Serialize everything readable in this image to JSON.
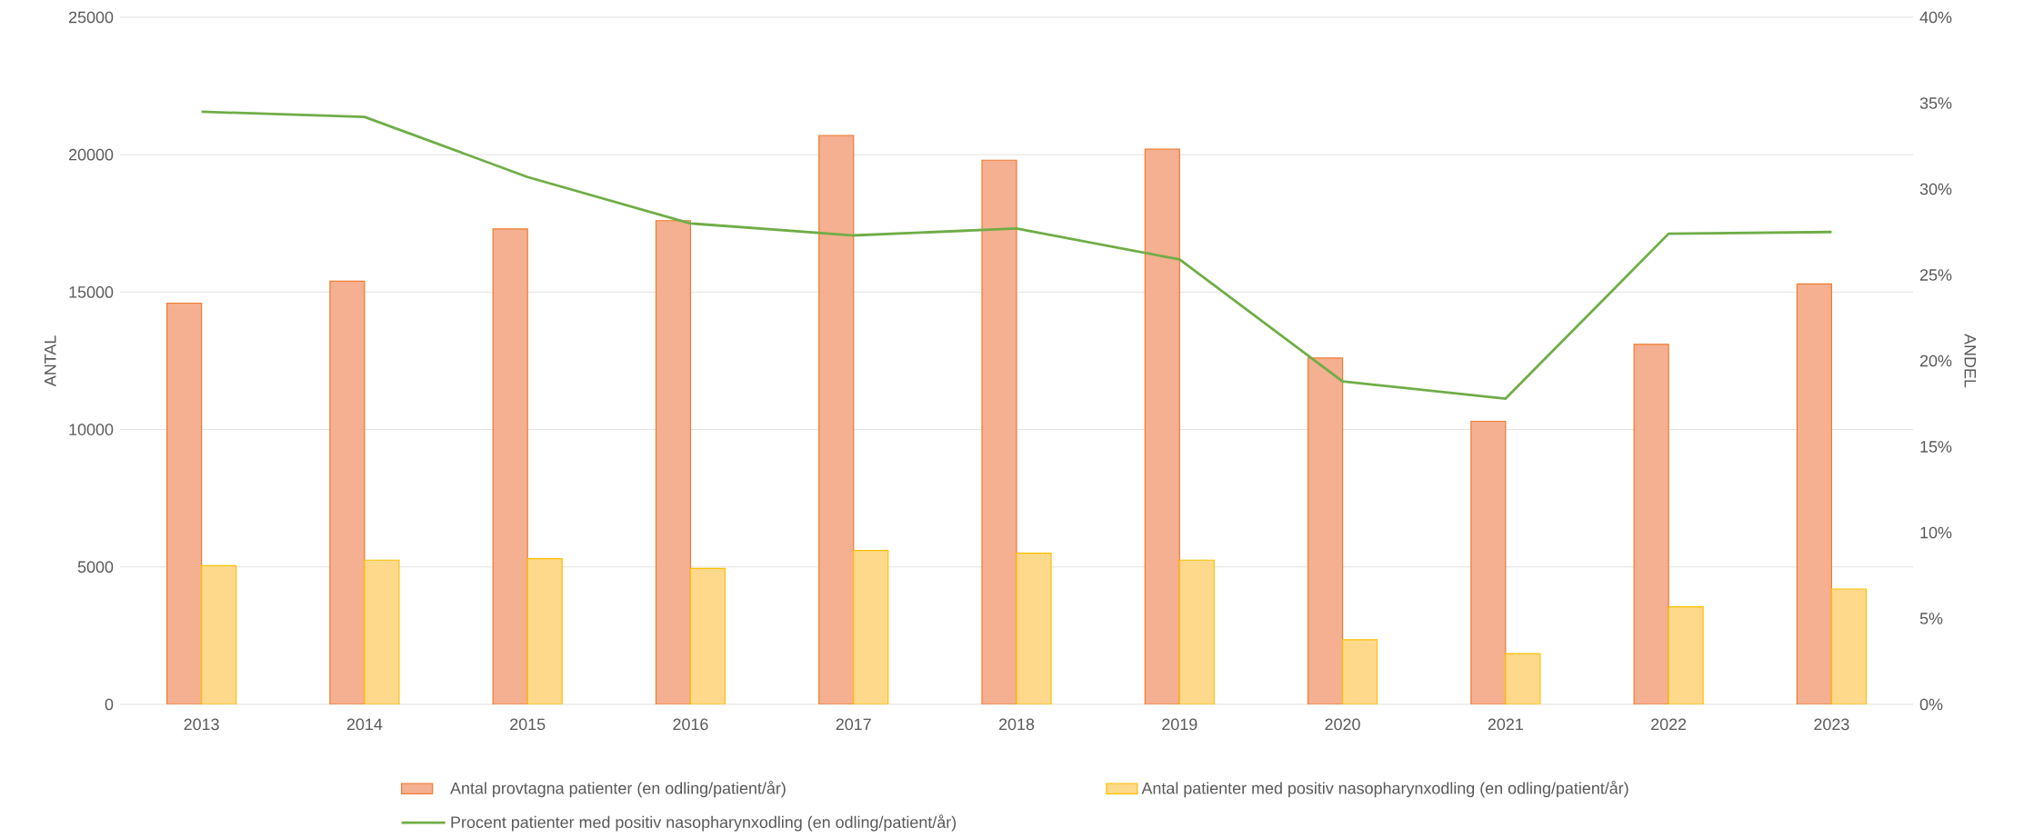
{
  "chart_data": {
    "type": "bar",
    "categories": [
      "2013",
      "2014",
      "2015",
      "2016",
      "2017",
      "2018",
      "2019",
      "2020",
      "2021",
      "2022",
      "2023"
    ],
    "series": [
      {
        "name": "Antal provtagna patienter (en odling/patient/år)",
        "color": "#ed7d31",
        "values": [
          14600,
          15400,
          17300,
          17600,
          20700,
          19800,
          20200,
          12600,
          10300,
          13100,
          15300
        ]
      },
      {
        "name": "Antal patienter med positiv nasopharynxodling (en odling/patient/år)",
        "color": "#ffc000",
        "values": [
          5050,
          5250,
          5300,
          4950,
          5600,
          5500,
          5250,
          2350,
          1850,
          3550,
          4200
        ]
      },
      {
        "name": "Procent patienter med positiv nasopharynxodling (en odling/patient/år)",
        "type": "line",
        "axis": "y2",
        "color": "#70ad47",
        "values": [
          34.5,
          34.2,
          30.7,
          28.0,
          27.3,
          27.7,
          25.9,
          18.8,
          17.8,
          27.4,
          27.5
        ]
      }
    ],
    "ylabel": "ANTAL",
    "y2label": "ANDEL",
    "ylim": [
      0,
      25000
    ],
    "yticks": [
      0,
      5000,
      10000,
      15000,
      20000,
      25000
    ],
    "y2lim": [
      0,
      40
    ],
    "y2ticks": [
      {
        "value": 0,
        "label": "0%"
      },
      {
        "value": 5,
        "label": "5%"
      },
      {
        "value": 10,
        "label": "10%"
      },
      {
        "value": 15,
        "label": "15%"
      },
      {
        "value": 20,
        "label": "20%"
      },
      {
        "value": 25,
        "label": "25%"
      },
      {
        "value": 30,
        "label": "30%"
      },
      {
        "value": 35,
        "label": "35%"
      },
      {
        "value": 40,
        "label": "40%"
      }
    ],
    "grid": "y",
    "legend": "bottom"
  }
}
